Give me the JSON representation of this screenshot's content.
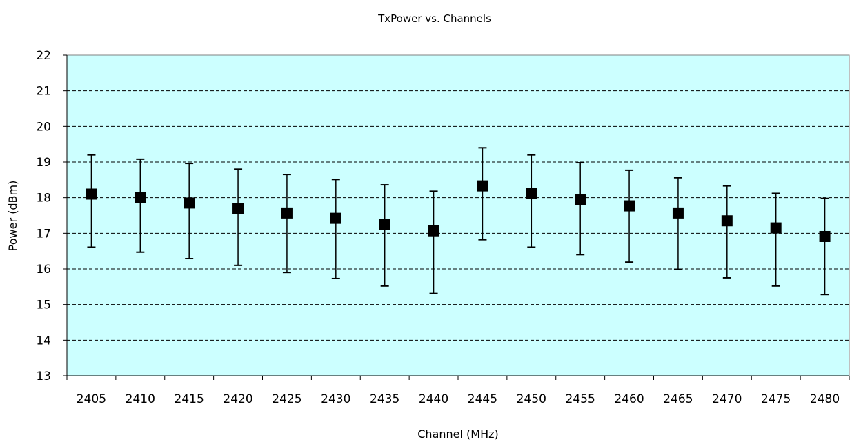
{
  "chart_data": {
    "type": "scatter",
    "title": "TxPower vs. Channels",
    "xlabel": "Channel (MHz)",
    "ylabel": "Power (dBm)",
    "categories": [
      "2405",
      "2410",
      "2415",
      "2420",
      "2425",
      "2430",
      "2435",
      "2440",
      "2445",
      "2450",
      "2455",
      "2460",
      "2465",
      "2470",
      "2475",
      "2480"
    ],
    "ylim": [
      13,
      22
    ],
    "yticks": [
      13,
      14,
      15,
      16,
      17,
      18,
      19,
      20,
      21,
      22
    ],
    "series": [
      {
        "values": [
          18.1,
          18.0,
          17.85,
          17.7,
          17.57,
          17.42,
          17.25,
          17.07,
          18.33,
          18.12,
          17.94,
          17.77,
          17.57,
          17.35,
          17.15,
          16.91
        ],
        "err_high": [
          19.2,
          19.08,
          18.96,
          18.8,
          18.65,
          18.51,
          18.36,
          18.18,
          19.4,
          19.2,
          18.98,
          18.77,
          18.56,
          18.33,
          18.12,
          17.98
        ],
        "err_low": [
          16.61,
          16.47,
          16.29,
          16.1,
          15.9,
          15.73,
          15.52,
          15.31,
          16.82,
          16.61,
          16.4,
          16.19,
          15.99,
          15.75,
          15.52,
          15.28
        ]
      }
    ],
    "grid": "horizontal-dashed",
    "legend": "none",
    "colors": {
      "plot_background": "#CCFFFF",
      "marker": "#000000",
      "gridline": "#000000"
    }
  }
}
